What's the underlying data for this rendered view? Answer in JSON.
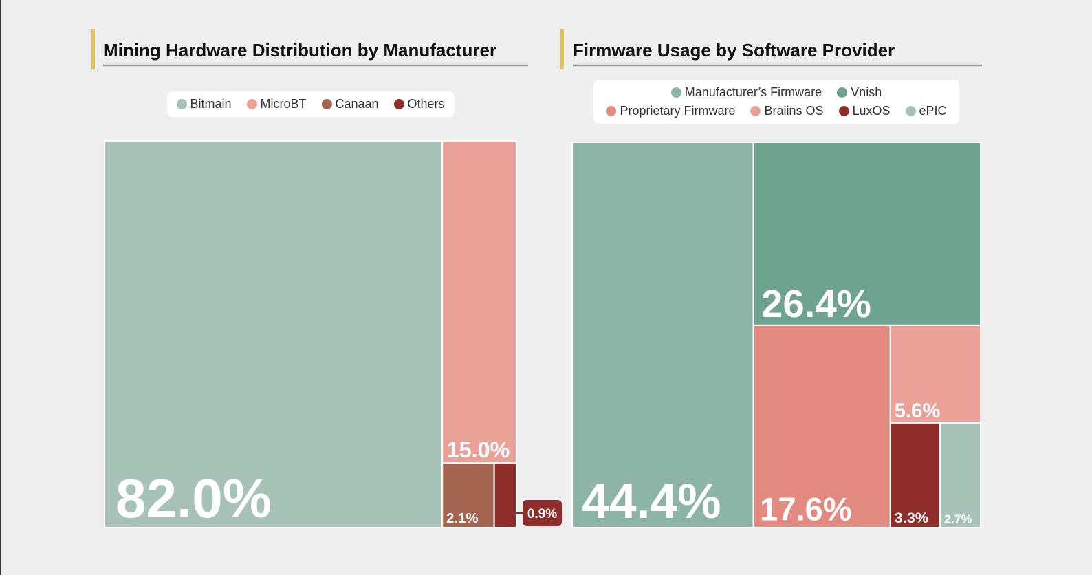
{
  "chart_data": [
    {
      "type": "treemap",
      "title": "Mining Hardware Distribution by Manufacturer",
      "categories": [
        "Bitmain",
        "MicroBT",
        "Canaan",
        "Others"
      ],
      "values": [
        82.0,
        15.0,
        2.1,
        0.9
      ],
      "value_labels": [
        "82.0%",
        "15.0%",
        "2.1%",
        "0.9%"
      ],
      "colors": [
        "#a7c3b8",
        "#eaa198",
        "#a5644f",
        "#8e2d29"
      ]
    },
    {
      "type": "treemap",
      "title": "Firmware Usage by Software Provider",
      "categories": [
        "Manufacturer’s Firmware",
        "Vnish",
        "Proprietary Firmware",
        "Braiins OS",
        "LuxOS",
        "ePIC"
      ],
      "values": [
        44.4,
        26.4,
        17.6,
        5.6,
        3.3,
        2.7
      ],
      "value_labels": [
        "44.4%",
        "26.4%",
        "17.6%",
        "5.6%",
        "3.3%",
        "2.7%"
      ],
      "colors": [
        "#8db5a7",
        "#6ea390",
        "#e38a80",
        "#eba198",
        "#8e2d29",
        "#a7c3b8"
      ]
    }
  ]
}
